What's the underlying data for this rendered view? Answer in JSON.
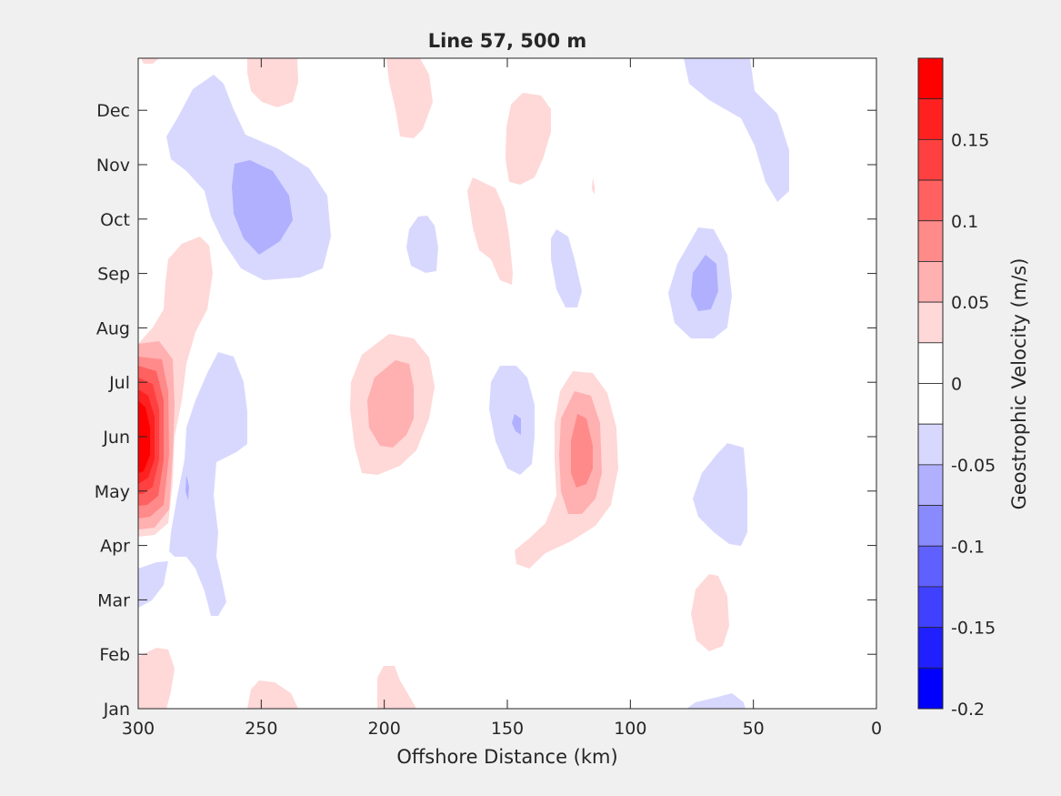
{
  "chart_data": {
    "type": "contour",
    "title": "Line 57, 500 m",
    "xlabel": "Offshore Distance (km)",
    "xlim": [
      300,
      0
    ],
    "xticks": [
      300,
      250,
      200,
      150,
      100,
      50,
      0
    ],
    "xtick_labels": [
      "300",
      "250",
      "200",
      "150",
      "100",
      "50",
      "0"
    ],
    "ylabel": "",
    "yticks": [
      "Jan",
      "Feb",
      "Mar",
      "Apr",
      "May",
      "Jun",
      "Jul",
      "Aug",
      "Sep",
      "Oct",
      "Nov",
      "Dec"
    ],
    "colorbar": {
      "label": "Geostrophic Velocity (m/s)",
      "range": [
        -0.2,
        0.2
      ],
      "levels": [
        0.2,
        0.175,
        0.15,
        0.125,
        0.1,
        0.075,
        0.05,
        0.025,
        0,
        -0.025,
        -0.05,
        -0.075,
        -0.1,
        -0.125,
        -0.15,
        -0.175,
        -0.2
      ],
      "tick_values": [
        0.15,
        0.1,
        0.05,
        0,
        -0.05,
        -0.1,
        -0.15,
        -0.2
      ],
      "tick_labels": [
        "0.15",
        "0.1",
        "0.05",
        "0",
        "-0.05",
        "-0.1",
        "-0.15",
        "-0.2"
      ],
      "colors": [
        "#ff0000",
        "#ff2020",
        "#ff4040",
        "#ff6060",
        "#ff8a8a",
        "#ffb0b0",
        "#ffd8d8",
        "#ffffff",
        "#ffffff",
        "#d8d8ff",
        "#b0b0ff",
        "#8a8aff",
        "#6060ff",
        "#4040ff",
        "#2020ff",
        "#0000ff"
      ]
    },
    "features": [
      {
        "kind": "positive",
        "month": 5.5,
        "distance_km": 298,
        "peak": 0.2
      },
      {
        "kind": "positive",
        "month": 5.3,
        "distance_km": 195,
        "peak": 0.075
      },
      {
        "kind": "positive",
        "month": 5.1,
        "distance_km": 120,
        "peak": 0.1
      },
      {
        "kind": "positive",
        "month": 7.5,
        "distance_km": 285,
        "peak": 0.05
      },
      {
        "kind": "positive",
        "month": 10.2,
        "distance_km": 140,
        "peak": 0.05
      },
      {
        "kind": "positive",
        "month": 9.4,
        "distance_km": 160,
        "peak": 0.05
      },
      {
        "kind": "positive",
        "month": 2.2,
        "distance_km": 70,
        "peak": 0.05
      },
      {
        "kind": "negative",
        "month": 9.9,
        "distance_km": 245,
        "peak": -0.1
      },
      {
        "kind": "negative",
        "month": 7.6,
        "distance_km": 70,
        "peak": -0.1
      },
      {
        "kind": "negative",
        "month": 5.5,
        "distance_km": 150,
        "peak": -0.075
      },
      {
        "kind": "negative",
        "month": 4.2,
        "distance_km": 60,
        "peak": -0.05
      },
      {
        "kind": "negative",
        "month": 10.9,
        "distance_km": 50,
        "peak": -0.05
      },
      {
        "kind": "negative",
        "month": 4.9,
        "distance_km": 270,
        "peak": -0.05
      }
    ]
  }
}
